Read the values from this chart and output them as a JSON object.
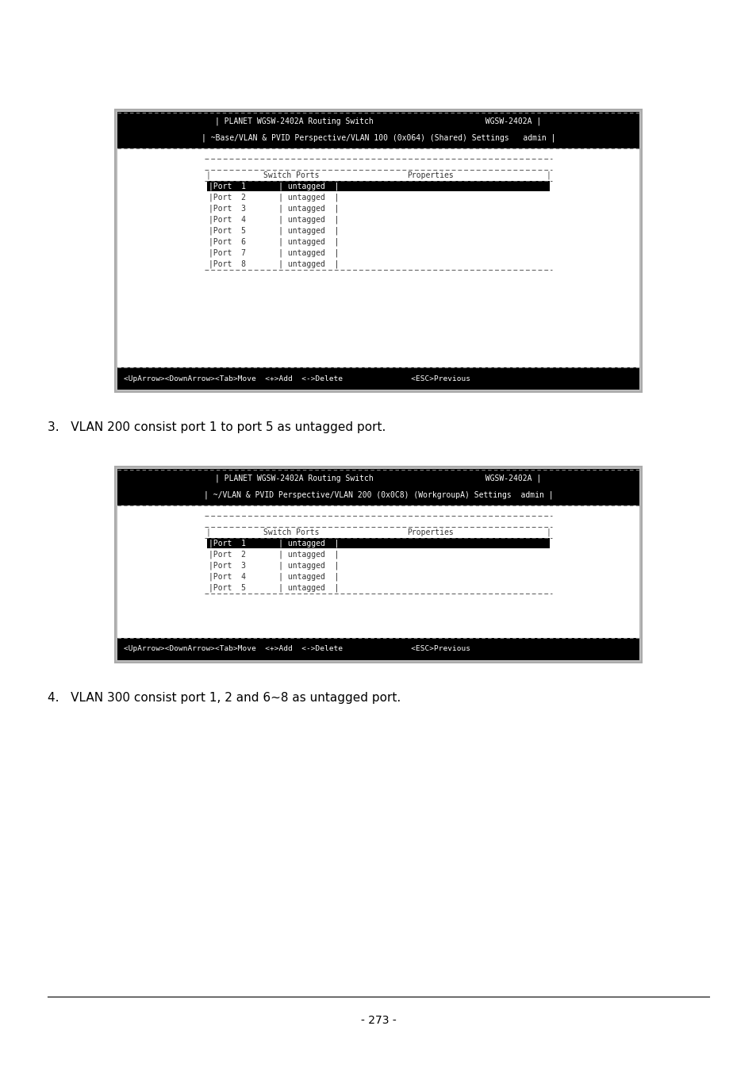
{
  "bg_color": "#ffffff",
  "terminal1": {
    "header_line1": "| PLANET WGSW-2402A Routing Switch                        WGSW-2402A |",
    "header_line2": "| ~Base/VLAN & PVID Perspective/VLAN 100 (0x064) (Shared) Settings   admin |",
    "rows": [
      "|Port  1       | untagged  |",
      "|Port  2       | untagged  |",
      "|Port  3       | untagged  |",
      "|Port  4       | untagged  |",
      "|Port  5       | untagged  |",
      "|Port  6       | untagged  |",
      "|Port  7       | untagged  |",
      "|Port  8       | untagged  |"
    ],
    "highlighted_row": 0,
    "footer": "<UpArrow><DownArrow><Tab>Move  <+>Add  <->Delete               <ESC>Previous"
  },
  "label3": "3.   VLAN 200 consist port 1 to port 5 as untagged port.",
  "terminal2": {
    "header_line1": "| PLANET WGSW-2402A Routing Switch                        WGSW-2402A |",
    "header_line2": "| ~/VLAN & PVID Perspective/VLAN 200 (0x0C8) (WorkgroupA) Settings  admin |",
    "rows": [
      "|Port  1       | untagged  |",
      "|Port  2       | untagged  |",
      "|Port  3       | untagged  |",
      "|Port  4       | untagged  |",
      "|Port  5       | untagged  |"
    ],
    "highlighted_row": 0,
    "footer": "<UpArrow><DownArrow><Tab>Move  <+>Add  <->Delete               <ESC>Previous"
  },
  "label4": "4.   VLAN 300 consist port 1, 2 and 6~8 as untagged port.",
  "page_number": "- 273 -",
  "table_header": "  Switch Ports      Properties",
  "font_size_header": 7.0,
  "font_size_body": 7.0,
  "font_size_footer": 6.8,
  "font_size_label": 11,
  "font_size_page": 10
}
